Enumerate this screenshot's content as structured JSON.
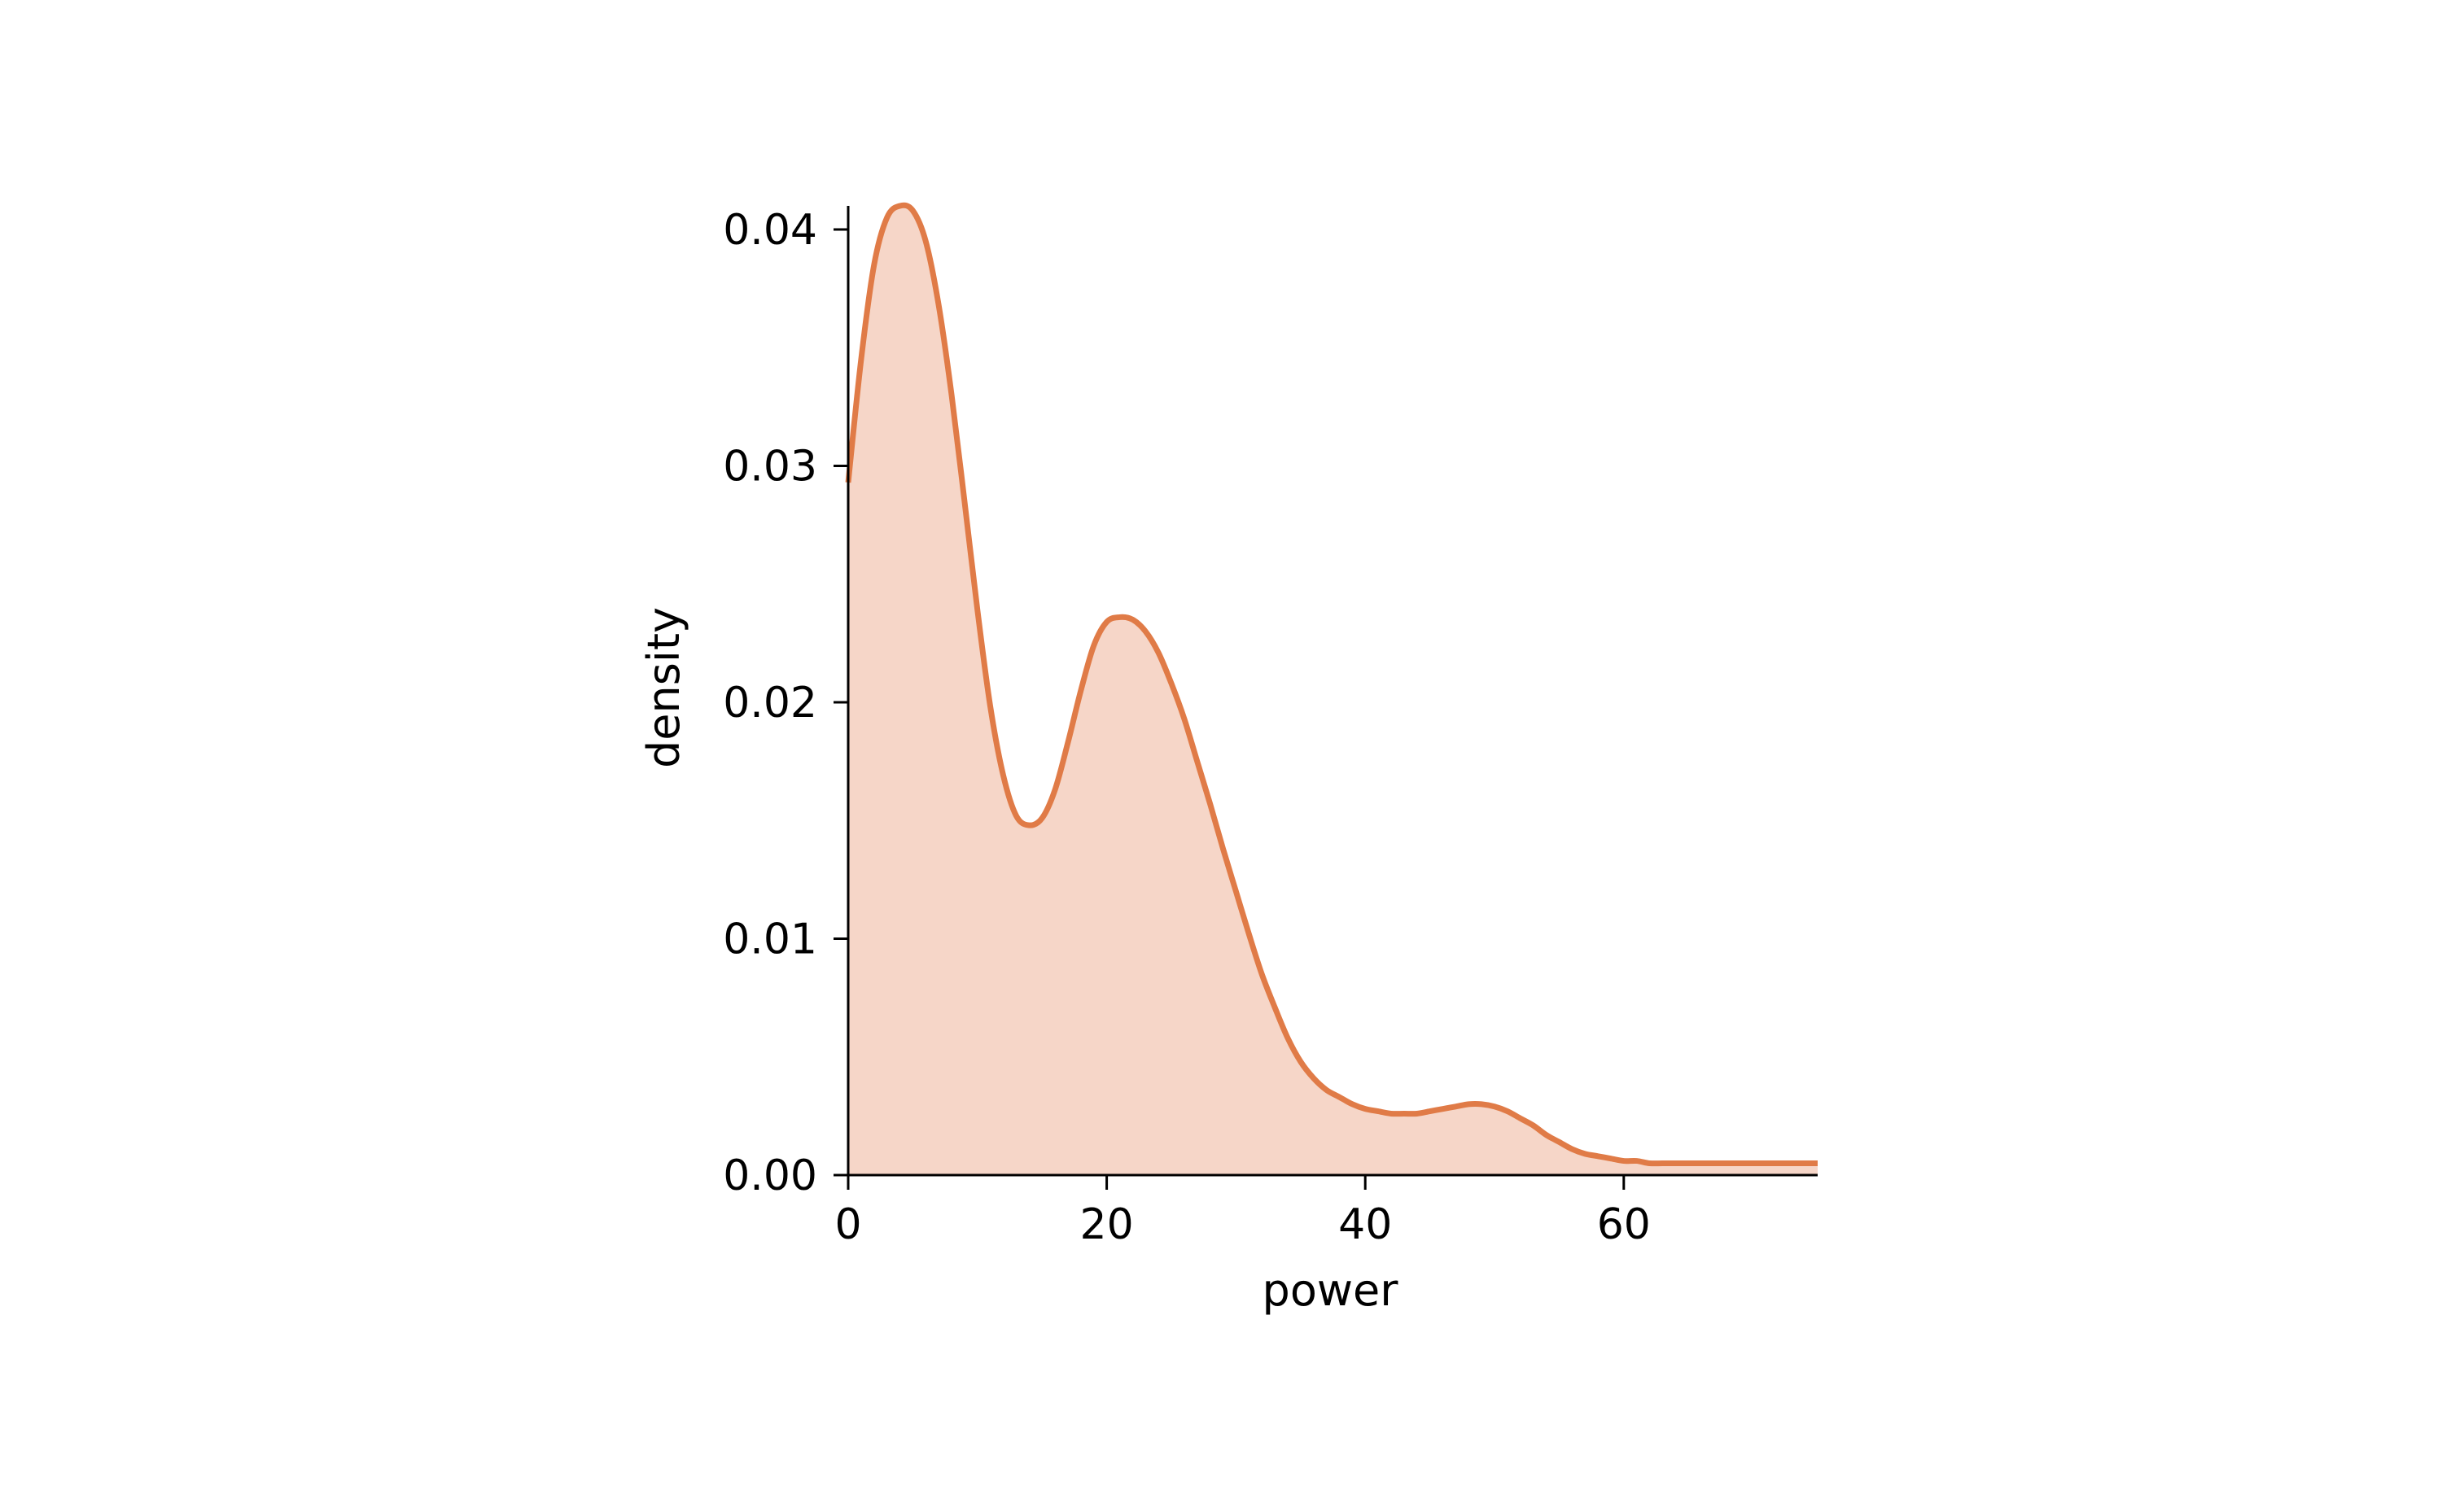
{
  "chart_data": {
    "type": "area",
    "title": "",
    "xlabel": "power",
    "ylabel": "density",
    "xlim": [
      0,
      75
    ],
    "ylim": [
      0,
      0.041
    ],
    "grid": false,
    "legend": "none",
    "x_ticks": [
      0,
      20,
      40,
      60
    ],
    "x_tick_labels": [
      "0",
      "20",
      "40",
      "60"
    ],
    "y_ticks": [
      0,
      0.01,
      0.02,
      0.03,
      0.04
    ],
    "y_tick_labels": [
      "0.00",
      "0.01",
      "0.02",
      "0.03",
      "0.04"
    ],
    "colors": {
      "line": "#e07b47",
      "fill": "#f6d6c8",
      "axis": "#000000"
    },
    "series": [
      {
        "x": [
          0,
          1,
          2,
          3,
          4,
          5,
          6,
          7,
          8,
          9,
          10,
          11,
          12,
          13,
          14,
          15,
          16,
          17,
          18,
          19,
          20,
          21,
          22,
          23,
          24,
          25,
          26,
          27,
          28,
          29,
          30,
          31,
          32,
          33,
          34,
          35,
          36,
          37,
          38,
          39,
          40,
          41,
          42,
          43,
          44,
          45,
          46,
          47,
          48,
          49,
          50,
          51,
          52,
          53,
          54,
          55,
          56,
          57,
          58,
          59,
          60,
          61,
          62,
          63,
          64,
          65,
          66,
          67,
          68,
          69,
          70,
          71,
          72,
          73,
          74,
          75
        ],
        "y": [
          0.0293,
          0.0345,
          0.0385,
          0.0405,
          0.041,
          0.0408,
          0.0395,
          0.0368,
          0.033,
          0.0285,
          0.0239,
          0.0198,
          0.0169,
          0.0152,
          0.0148,
          0.0151,
          0.0163,
          0.0183,
          0.0205,
          0.0224,
          0.0234,
          0.0236,
          0.0235,
          0.023,
          0.0221,
          0.0208,
          0.0193,
          0.0175,
          0.0157,
          0.0138,
          0.012,
          0.0102,
          0.0085,
          0.0071,
          0.0058,
          0.0048,
          0.0041,
          0.0036,
          0.0033,
          0.003,
          0.0028,
          0.0027,
          0.0026,
          0.0026,
          0.0026,
          0.0027,
          0.0028,
          0.0029,
          0.003,
          0.003,
          0.0029,
          0.0027,
          0.0024,
          0.0021,
          0.0017,
          0.0014,
          0.0011,
          0.0009,
          0.0008,
          0.0007,
          0.0006,
          0.0006,
          0.0005,
          0.0005,
          0.0005,
          0.0005,
          0.0005,
          0.0005,
          0.0005,
          0.0005,
          0.0005,
          0.0005,
          0.0005,
          0.0005,
          0.0005,
          0.0005
        ]
      }
    ]
  }
}
